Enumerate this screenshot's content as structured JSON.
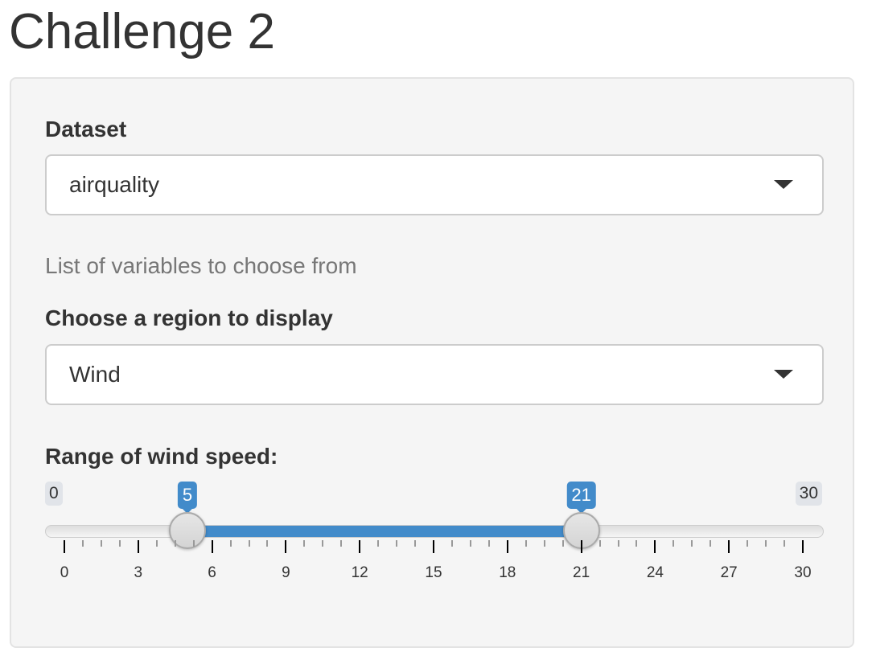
{
  "page": {
    "title": "Challenge 2"
  },
  "dataset": {
    "label": "Dataset",
    "selected": "airquality"
  },
  "help_text": "List of variables to choose from",
  "region": {
    "label": "Choose a region to display",
    "selected": "Wind"
  },
  "wind_slider": {
    "label": "Range of wind speed:",
    "min": 0,
    "max": 30,
    "min_label": "0",
    "max_label": "30",
    "from": 5,
    "to": 21,
    "from_label": "5",
    "to_label": "21",
    "major_step": 3,
    "minor_per_major": 4,
    "tick_labels": [
      "0",
      "3",
      "6",
      "9",
      "12",
      "15",
      "18",
      "21",
      "24",
      "27",
      "30"
    ],
    "colors": {
      "bar": "#428bca",
      "badge": "#428bca"
    }
  }
}
